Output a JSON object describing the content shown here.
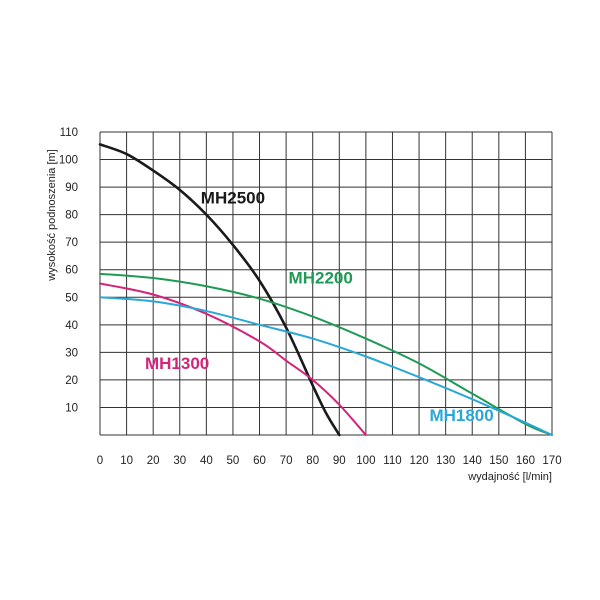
{
  "chart_data": {
    "type": "line",
    "title": "",
    "xlabel": "wydajność [l/min]",
    "ylabel": "wysokość podnoszenia [m]",
    "xlim": [
      0,
      170
    ],
    "ylim": [
      0,
      110
    ],
    "xticks": [
      0,
      10,
      20,
      30,
      40,
      50,
      60,
      70,
      80,
      90,
      100,
      110,
      120,
      130,
      140,
      150,
      160,
      170
    ],
    "yticks": [
      10,
      20,
      30,
      40,
      50,
      60,
      70,
      80,
      90,
      100,
      110
    ],
    "grid": true,
    "legend": "labels placed next to curves",
    "series": [
      {
        "name": "MH2500",
        "color": "#1a1a1a",
        "x": [
          0,
          10,
          20,
          30,
          40,
          50,
          60,
          70,
          80,
          85,
          90
        ],
        "y": [
          105.5,
          102,
          96,
          89,
          80,
          69,
          56,
          39,
          18,
          8,
          0
        ]
      },
      {
        "name": "MH2200",
        "color": "#1f9a55",
        "x": [
          0,
          20,
          40,
          60,
          80,
          100,
          120,
          140,
          160,
          170
        ],
        "y": [
          58.5,
          57,
          54,
          49.5,
          43,
          35,
          26,
          15,
          4,
          0
        ]
      },
      {
        "name": "MH1300",
        "color": "#d4237a",
        "x": [
          0,
          20,
          40,
          60,
          70,
          80,
          90,
          100
        ],
        "y": [
          55,
          51,
          44,
          34,
          27,
          20,
          11,
          0
        ]
      },
      {
        "name": "MH1800",
        "color": "#2aa7d9",
        "x": [
          0,
          20,
          40,
          60,
          80,
          100,
          120,
          140,
          160,
          170
        ],
        "y": [
          50,
          48.5,
          45,
          40,
          35,
          28.5,
          21,
          13,
          4.5,
          0
        ]
      }
    ],
    "annotations": [
      {
        "text": "MH2500",
        "series": "MH2500"
      },
      {
        "text": "MH2200",
        "series": "MH2200"
      },
      {
        "text": "MH1300",
        "series": "MH1300"
      },
      {
        "text": "MH1800",
        "series": "MH1800"
      }
    ]
  }
}
